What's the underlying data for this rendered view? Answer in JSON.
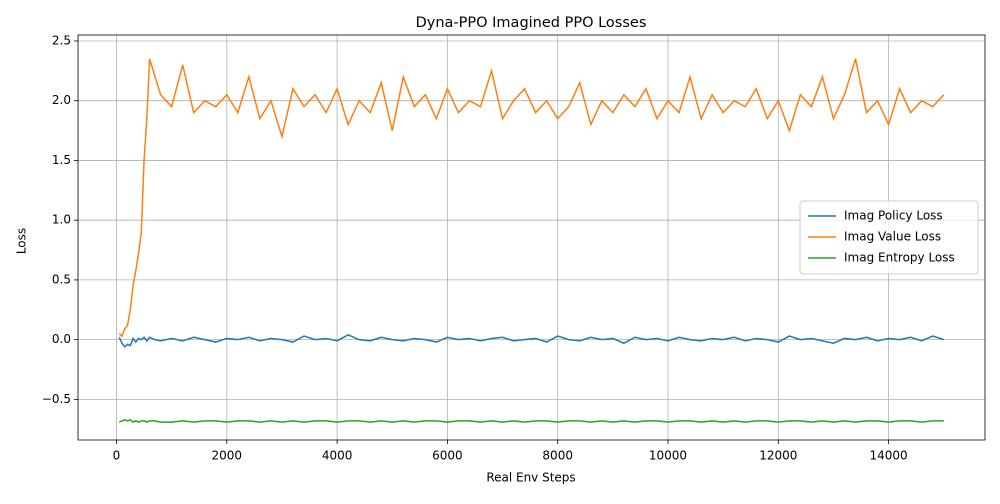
{
  "chart_data": {
    "type": "line",
    "title": "Dyna-PPO Imagined PPO Losses",
    "xlabel": "Real Env Steps",
    "ylabel": "Loss",
    "x": [
      50,
      100,
      150,
      200,
      250,
      300,
      350,
      400,
      450,
      500,
      550,
      600,
      700,
      800,
      1000,
      1200,
      1400,
      1600,
      1800,
      2000,
      2200,
      2400,
      2600,
      2800,
      3000,
      3200,
      3400,
      3600,
      3800,
      4000,
      4200,
      4400,
      4600,
      4800,
      5000,
      5200,
      5400,
      5600,
      5800,
      6000,
      6200,
      6400,
      6600,
      6800,
      7000,
      7200,
      7400,
      7600,
      7800,
      8000,
      8200,
      8400,
      8600,
      8800,
      9000,
      9200,
      9400,
      9600,
      9800,
      10000,
      10200,
      10400,
      10600,
      10800,
      11000,
      11200,
      11400,
      11600,
      11800,
      12000,
      12200,
      12400,
      12600,
      12800,
      13000,
      13200,
      13400,
      13600,
      13800,
      14000,
      14200,
      14400,
      14600,
      14800,
      15000
    ],
    "series": [
      {
        "name": "Imag Policy Loss",
        "color": "#1f77b4",
        "values": [
          0.02,
          -0.03,
          -0.06,
          -0.04,
          -0.05,
          0.01,
          -0.02,
          0.01,
          0.0,
          0.02,
          -0.01,
          0.02,
          0.0,
          -0.01,
          0.01,
          -0.01,
          0.02,
          0.0,
          -0.02,
          0.01,
          0.0,
          0.02,
          -0.01,
          0.01,
          0.0,
          -0.02,
          0.03,
          0.0,
          0.01,
          -0.01,
          0.04,
          0.0,
          -0.01,
          0.02,
          0.0,
          -0.01,
          0.01,
          0.0,
          -0.02,
          0.02,
          0.0,
          0.01,
          -0.01,
          0.01,
          0.02,
          -0.01,
          0.0,
          0.01,
          -0.02,
          0.03,
          0.0,
          -0.01,
          0.02,
          0.0,
          0.01,
          -0.03,
          0.02,
          0.0,
          0.01,
          -0.01,
          0.02,
          0.0,
          -0.01,
          0.01,
          0.0,
          0.02,
          -0.01,
          0.01,
          0.0,
          -0.02,
          0.03,
          0.0,
          0.01,
          -0.01,
          -0.03,
          0.01,
          0.0,
          0.02,
          -0.01,
          0.01,
          0.0,
          0.02,
          -0.01,
          0.03,
          0.0
        ]
      },
      {
        "name": "Imag Value Loss",
        "color": "#ff7f0e",
        "values": [
          0.05,
          0.03,
          0.09,
          0.12,
          0.25,
          0.45,
          0.58,
          0.72,
          0.9,
          1.5,
          1.85,
          2.35,
          2.2,
          2.05,
          1.95,
          2.3,
          1.9,
          2.0,
          1.95,
          2.05,
          1.9,
          2.2,
          1.85,
          2.0,
          1.7,
          2.1,
          1.95,
          2.05,
          1.9,
          2.1,
          1.8,
          2.0,
          1.9,
          2.15,
          1.75,
          2.2,
          1.95,
          2.05,
          1.85,
          2.1,
          1.9,
          2.0,
          1.95,
          2.25,
          1.85,
          2.0,
          2.1,
          1.9,
          2.0,
          1.85,
          1.95,
          2.15,
          1.8,
          2.0,
          1.9,
          2.05,
          1.95,
          2.1,
          1.85,
          2.0,
          1.9,
          2.2,
          1.85,
          2.05,
          1.9,
          2.0,
          1.95,
          2.1,
          1.85,
          2.0,
          1.75,
          2.05,
          1.95,
          2.2,
          1.85,
          2.05,
          2.35,
          1.9,
          2.0,
          1.8,
          2.1,
          1.9,
          2.0,
          1.95,
          2.05
        ]
      },
      {
        "name": "Imag Entropy Loss",
        "color": "#2ca02c",
        "values": [
          -0.69,
          -0.68,
          -0.67,
          -0.68,
          -0.67,
          -0.69,
          -0.68,
          -0.69,
          -0.68,
          -0.68,
          -0.69,
          -0.68,
          -0.68,
          -0.69,
          -0.69,
          -0.68,
          -0.69,
          -0.68,
          -0.68,
          -0.69,
          -0.68,
          -0.68,
          -0.69,
          -0.68,
          -0.69,
          -0.68,
          -0.69,
          -0.68,
          -0.68,
          -0.69,
          -0.68,
          -0.68,
          -0.69,
          -0.68,
          -0.69,
          -0.68,
          -0.69,
          -0.68,
          -0.68,
          -0.69,
          -0.68,
          -0.68,
          -0.69,
          -0.68,
          -0.69,
          -0.68,
          -0.69,
          -0.68,
          -0.68,
          -0.69,
          -0.68,
          -0.68,
          -0.69,
          -0.68,
          -0.69,
          -0.68,
          -0.69,
          -0.68,
          -0.68,
          -0.69,
          -0.68,
          -0.68,
          -0.69,
          -0.68,
          -0.69,
          -0.68,
          -0.69,
          -0.68,
          -0.68,
          -0.69,
          -0.68,
          -0.68,
          -0.69,
          -0.68,
          -0.69,
          -0.68,
          -0.69,
          -0.68,
          -0.68,
          -0.69,
          -0.68,
          -0.68,
          -0.69,
          -0.68,
          -0.68
        ]
      }
    ],
    "xlim": [
      -698,
      15748
    ],
    "ylim": [
      -0.84,
      2.55
    ],
    "xticks": [
      0,
      2000,
      4000,
      6000,
      8000,
      10000,
      12000,
      14000
    ],
    "yticks": [
      {
        "value": -0.5,
        "label": "−0.5"
      },
      {
        "value": 0,
        "label": "0.0"
      },
      {
        "value": 0.5,
        "label": "0.5"
      },
      {
        "value": 1,
        "label": "1.0"
      },
      {
        "value": 1.5,
        "label": "1.5"
      },
      {
        "value": 2,
        "label": "2.0"
      },
      {
        "value": 2.5,
        "label": "2.5"
      }
    ],
    "grid": true,
    "legend": "center right"
  }
}
